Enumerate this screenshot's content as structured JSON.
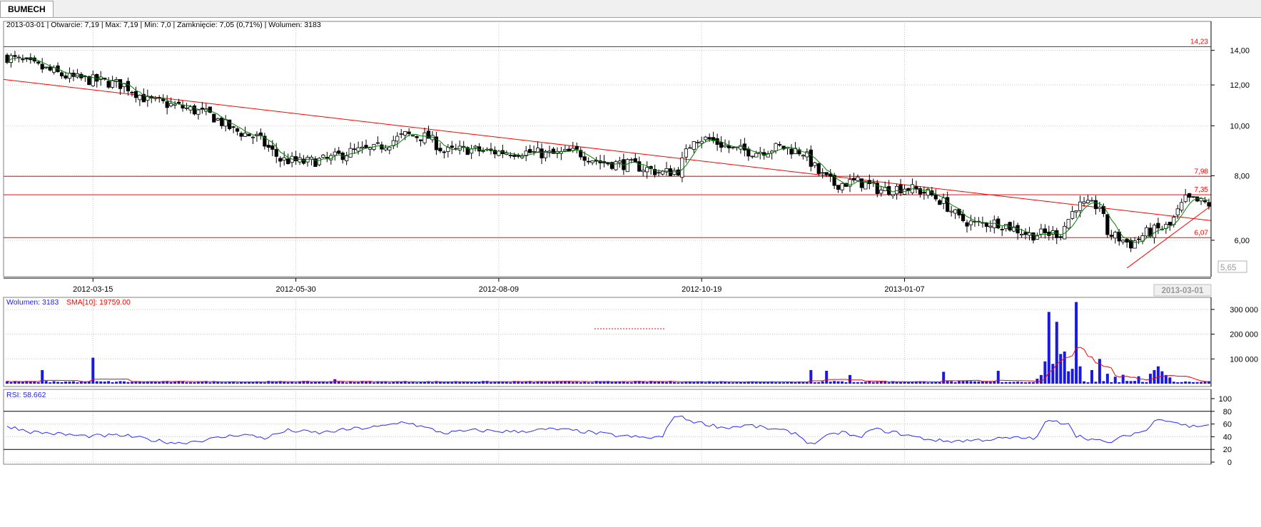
{
  "tab": {
    "label": "BUMECH"
  },
  "header": {
    "info": "2013-03-01 | Otwarcie: 7,19 | Max: 7,19 | Min: 7,0 | Zamknięcie: 7,05 (0,71%) | Wolumen: 3183"
  },
  "colors": {
    "up": "#ffffff",
    "down": "#000000",
    "sma": "#008000",
    "redline": "#ff0000",
    "volume": "#1a1adf",
    "rsi": "#2a2aff",
    "grid": "#c8c8c8"
  },
  "chart_data": [
    {
      "type": "candlestick",
      "title": "",
      "x_tick_labels": [
        "2012-03-15",
        "2012-05-30",
        "2012-08-09",
        "2012-10-19",
        "2013-01-07"
      ],
      "last_date_label": "2013-03-01",
      "y_tick_labels": [
        "14,00",
        "12,00",
        "10,00",
        "8,00",
        "6,00"
      ],
      "y_log_scale": true,
      "ylim": [
        5.1,
        14.3
      ],
      "price_readout": "5,65",
      "grid": true,
      "levels": [
        {
          "value": 14.23,
          "label": "14,23"
        },
        {
          "value": 7.98,
          "label": "7,98"
        },
        {
          "value": 7.35,
          "label": "7,35"
        },
        {
          "value": 6.07,
          "label": "6,07"
        }
      ],
      "trendlines": [
        {
          "from": {
            "date": "2012-02-24",
            "value": 12.3
          },
          "to": {
            "date": "2013-03-01",
            "value": 6.55
          }
        },
        {
          "from": {
            "date": "2013-02-04",
            "value": 5.35
          },
          "to": {
            "date": "2013-03-01",
            "value": 7.0
          }
        }
      ],
      "anchors": [
        {
          "i": 0,
          "v": 13.6
        },
        {
          "i": 8,
          "v": 13.0
        },
        {
          "i": 16,
          "v": 12.4
        },
        {
          "i": 24,
          "v": 12.2
        },
        {
          "i": 30,
          "v": 12.0
        },
        {
          "i": 36,
          "v": 11.2
        },
        {
          "i": 44,
          "v": 10.9
        },
        {
          "i": 52,
          "v": 10.5
        },
        {
          "i": 58,
          "v": 9.8
        },
        {
          "i": 64,
          "v": 9.5
        },
        {
          "i": 70,
          "v": 8.6
        },
        {
          "i": 76,
          "v": 8.5
        },
        {
          "i": 82,
          "v": 8.6
        },
        {
          "i": 88,
          "v": 8.9
        },
        {
          "i": 94,
          "v": 9.0
        },
        {
          "i": 102,
          "v": 9.6
        },
        {
          "i": 108,
          "v": 9.5
        },
        {
          "i": 112,
          "v": 8.9
        },
        {
          "i": 118,
          "v": 9.0
        },
        {
          "i": 124,
          "v": 8.9
        },
        {
          "i": 132,
          "v": 8.9
        },
        {
          "i": 140,
          "v": 8.8
        },
        {
          "i": 146,
          "v": 8.9
        },
        {
          "i": 152,
          "v": 8.5
        },
        {
          "i": 160,
          "v": 8.4
        },
        {
          "i": 168,
          "v": 8.1
        },
        {
          "i": 172,
          "v": 8.2
        },
        {
          "i": 176,
          "v": 9.5
        },
        {
          "i": 180,
          "v": 9.4
        },
        {
          "i": 186,
          "v": 9.0
        },
        {
          "i": 192,
          "v": 8.9
        },
        {
          "i": 198,
          "v": 9.1
        },
        {
          "i": 204,
          "v": 8.9
        },
        {
          "i": 208,
          "v": 8.1
        },
        {
          "i": 212,
          "v": 7.7
        },
        {
          "i": 218,
          "v": 7.8
        },
        {
          "i": 224,
          "v": 7.5
        },
        {
          "i": 230,
          "v": 7.6
        },
        {
          "i": 236,
          "v": 7.4
        },
        {
          "i": 240,
          "v": 7.1
        },
        {
          "i": 244,
          "v": 6.6
        },
        {
          "i": 248,
          "v": 6.45
        },
        {
          "i": 254,
          "v": 6.5
        },
        {
          "i": 262,
          "v": 6.15
        },
        {
          "i": 270,
          "v": 6.2
        },
        {
          "i": 274,
          "v": 7.0
        },
        {
          "i": 280,
          "v": 7.0
        },
        {
          "i": 282,
          "v": 6.2
        },
        {
          "i": 288,
          "v": 5.9
        },
        {
          "i": 292,
          "v": 6.2
        },
        {
          "i": 298,
          "v": 6.4
        },
        {
          "i": 302,
          "v": 7.2
        },
        {
          "i": 308,
          "v": 7.05
        }
      ]
    },
    {
      "type": "bar",
      "title": "",
      "legend": [
        {
          "label": "Wolumen: 3183",
          "color": "#1a1adf"
        },
        {
          "label": "SMA[10]: 19759.00",
          "color": "#ff0000"
        }
      ],
      "y_tick_labels": [
        "300 000",
        "200 000",
        "100 000"
      ],
      "ylim": [
        0,
        320000
      ],
      "baseline_volume": 8000,
      "spikes": [
        {
          "i": 9,
          "v": 55000
        },
        {
          "i": 22,
          "v": 105000
        },
        {
          "i": 84,
          "v": 18000
        },
        {
          "i": 206,
          "v": 55000
        },
        {
          "i": 210,
          "v": 52000
        },
        {
          "i": 216,
          "v": 35000
        },
        {
          "i": 240,
          "v": 48000
        },
        {
          "i": 254,
          "v": 52000
        },
        {
          "i": 264,
          "v": 20000
        },
        {
          "i": 265,
          "v": 35000
        },
        {
          "i": 266,
          "v": 90000
        },
        {
          "i": 267,
          "v": 290000
        },
        {
          "i": 268,
          "v": 80000
        },
        {
          "i": 269,
          "v": 250000
        },
        {
          "i": 270,
          "v": 120000
        },
        {
          "i": 271,
          "v": 130000
        },
        {
          "i": 272,
          "v": 50000
        },
        {
          "i": 273,
          "v": 60000
        },
        {
          "i": 274,
          "v": 330000
        },
        {
          "i": 275,
          "v": 70000
        },
        {
          "i": 278,
          "v": 55000
        },
        {
          "i": 280,
          "v": 100000
        },
        {
          "i": 282,
          "v": 40000
        },
        {
          "i": 284,
          "v": 28000
        },
        {
          "i": 286,
          "v": 36000
        },
        {
          "i": 290,
          "v": 30000
        },
        {
          "i": 293,
          "v": 40000
        },
        {
          "i": 294,
          "v": 55000
        },
        {
          "i": 295,
          "v": 70000
        },
        {
          "i": 296,
          "v": 50000
        },
        {
          "i": 297,
          "v": 35000
        },
        {
          "i": 298,
          "v": 25000
        }
      ]
    },
    {
      "type": "line",
      "title": "",
      "legend": [
        {
          "label": "RSI: 58.662",
          "color": "#2a2aff"
        }
      ],
      "y_tick_labels": [
        "100",
        "80",
        "60",
        "40",
        "20",
        "0"
      ],
      "ylim": [
        0,
        100
      ],
      "reference_lines": [
        80,
        20
      ],
      "anchors": [
        {
          "i": 0,
          "v": 57
        },
        {
          "i": 6,
          "v": 48
        },
        {
          "i": 12,
          "v": 45
        },
        {
          "i": 20,
          "v": 41
        },
        {
          "i": 30,
          "v": 42
        },
        {
          "i": 38,
          "v": 34
        },
        {
          "i": 44,
          "v": 30
        },
        {
          "i": 52,
          "v": 36
        },
        {
          "i": 60,
          "v": 44
        },
        {
          "i": 66,
          "v": 38
        },
        {
          "i": 72,
          "v": 50
        },
        {
          "i": 80,
          "v": 46
        },
        {
          "i": 88,
          "v": 52
        },
        {
          "i": 96,
          "v": 56
        },
        {
          "i": 102,
          "v": 64
        },
        {
          "i": 106,
          "v": 56
        },
        {
          "i": 112,
          "v": 46
        },
        {
          "i": 120,
          "v": 50
        },
        {
          "i": 130,
          "v": 48
        },
        {
          "i": 140,
          "v": 52
        },
        {
          "i": 148,
          "v": 48
        },
        {
          "i": 156,
          "v": 42
        },
        {
          "i": 164,
          "v": 38
        },
        {
          "i": 168,
          "v": 40
        },
        {
          "i": 171,
          "v": 74
        },
        {
          "i": 176,
          "v": 64
        },
        {
          "i": 184,
          "v": 54
        },
        {
          "i": 190,
          "v": 58
        },
        {
          "i": 196,
          "v": 52
        },
        {
          "i": 202,
          "v": 46
        },
        {
          "i": 206,
          "v": 28
        },
        {
          "i": 210,
          "v": 40
        },
        {
          "i": 214,
          "v": 48
        },
        {
          "i": 218,
          "v": 38
        },
        {
          "i": 222,
          "v": 52
        },
        {
          "i": 228,
          "v": 46
        },
        {
          "i": 234,
          "v": 38
        },
        {
          "i": 240,
          "v": 33
        },
        {
          "i": 246,
          "v": 34
        },
        {
          "i": 252,
          "v": 36
        },
        {
          "i": 258,
          "v": 38
        },
        {
          "i": 264,
          "v": 38
        },
        {
          "i": 266,
          "v": 64
        },
        {
          "i": 272,
          "v": 62
        },
        {
          "i": 274,
          "v": 42
        },
        {
          "i": 278,
          "v": 36
        },
        {
          "i": 282,
          "v": 30
        },
        {
          "i": 288,
          "v": 44
        },
        {
          "i": 292,
          "v": 50
        },
        {
          "i": 295,
          "v": 70
        },
        {
          "i": 300,
          "v": 62
        },
        {
          "i": 303,
          "v": 56
        },
        {
          "i": 308,
          "v": 58.662
        }
      ]
    }
  ]
}
